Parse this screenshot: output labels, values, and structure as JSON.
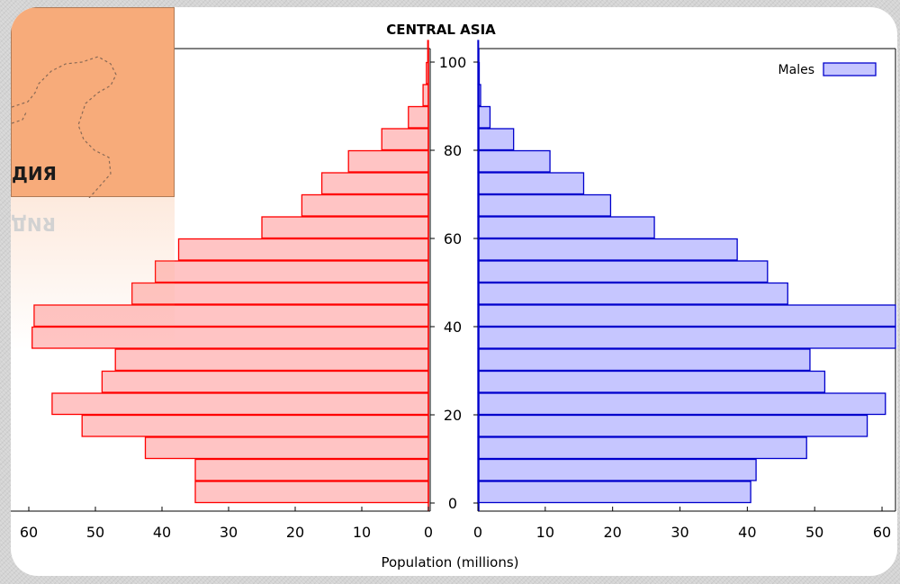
{
  "map_inset": {
    "label": "ДИЯ"
  },
  "chart_data": {
    "type": "bar",
    "title": "CENTRAL ASIA",
    "xlabel": "Population (millions)",
    "ylabel": "",
    "orientation": "horizontal-pyramid",
    "age_ticks": [
      "0",
      "20",
      "40",
      "60",
      "80",
      "100"
    ],
    "left_ticks": [
      "60",
      "50",
      "40",
      "30",
      "20",
      "10",
      "0"
    ],
    "right_ticks": [
      "0",
      "10",
      "20",
      "30",
      "40",
      "50",
      "60"
    ],
    "xlim": [
      0,
      62
    ],
    "ylim": [
      0,
      100
    ],
    "age_groups": [
      "0-4",
      "5-9",
      "10-14",
      "15-19",
      "20-24",
      "25-29",
      "30-34",
      "35-39",
      "40-44",
      "45-49",
      "50-54",
      "55-59",
      "60-64",
      "65-69",
      "70-74",
      "75-79",
      "80-84",
      "85-89",
      "90-94",
      "95-99",
      "100+"
    ],
    "legend": {
      "placement": "top-right"
    },
    "colors": {
      "females": "#ff0000",
      "males": "#0000cc"
    },
    "series": [
      {
        "values": [
          35,
          35,
          42.5,
          52,
          56.5,
          49,
          47,
          59.5,
          59.2,
          44.5,
          41,
          37.5,
          25,
          19,
          16,
          12,
          7,
          3,
          0.8,
          0.3,
          0.1
        ]
      },
      {
        "name": "Males",
        "values": [
          40.5,
          41.3,
          48.8,
          57.8,
          60.5,
          51.5,
          49.3,
          62,
          62,
          46,
          43,
          38.5,
          26.2,
          19.7,
          15.7,
          10.7,
          5.3,
          1.8,
          0.4,
          0.2,
          0.1
        ]
      }
    ]
  }
}
